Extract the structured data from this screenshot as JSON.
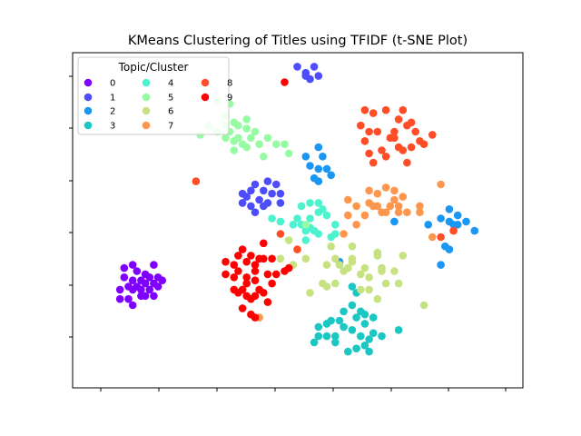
{
  "chart_data": {
    "type": "scatter",
    "title": "KMeans Clustering of Titles using TFIDF (t-SNE Plot)",
    "xlabel": "",
    "ylabel": "",
    "x_tick_labels": [],
    "y_tick_labels": [],
    "xlim": [
      0,
      100
    ],
    "ylim": [
      0,
      100
    ],
    "grid": false,
    "legend": {
      "title": "Topic/Cluster",
      "location": "upper left",
      "ncol": 3
    },
    "series": [
      {
        "name": "0",
        "color": "#8000ff",
        "points": [
          [
            9,
            34
          ],
          [
            11,
            35
          ],
          [
            12,
            33
          ],
          [
            14,
            32
          ],
          [
            16,
            35
          ],
          [
            9,
            31
          ],
          [
            11,
            30
          ],
          [
            13,
            30
          ],
          [
            15,
            31
          ],
          [
            17,
            31
          ],
          [
            10,
            28
          ],
          [
            12,
            28
          ],
          [
            14,
            29
          ],
          [
            16,
            29
          ],
          [
            18,
            30
          ],
          [
            8,
            27
          ],
          [
            11,
            27
          ],
          [
            13,
            27
          ],
          [
            15,
            27
          ],
          [
            17,
            28
          ],
          [
            8,
            24
          ],
          [
            10,
            24
          ],
          [
            13,
            25
          ],
          [
            16,
            25
          ],
          [
            14,
            25
          ],
          [
            11,
            22
          ]
        ]
      },
      {
        "name": "1",
        "color": "#4d4dfc",
        "points": [
          [
            50,
            99
          ],
          [
            54,
            99
          ],
          [
            52,
            97
          ],
          [
            53,
            95
          ],
          [
            55,
            96
          ],
          [
            52,
            96
          ],
          [
            40,
            61
          ],
          [
            43,
            62
          ],
          [
            45,
            61
          ],
          [
            37,
            58
          ],
          [
            39,
            59
          ],
          [
            42,
            59
          ],
          [
            44,
            58
          ],
          [
            46,
            58
          ],
          [
            38,
            57
          ],
          [
            41,
            56
          ],
          [
            43,
            55
          ],
          [
            37,
            55
          ],
          [
            39,
            54
          ],
          [
            42,
            54
          ],
          [
            46,
            55
          ],
          [
            40,
            52
          ]
        ]
      },
      {
        "name": "2",
        "color": "#1a96f3",
        "points": [
          [
            55,
            73
          ],
          [
            52,
            70
          ],
          [
            56,
            70
          ],
          [
            53,
            67
          ],
          [
            57,
            66
          ],
          [
            55,
            66
          ],
          [
            54,
            63
          ],
          [
            58,
            64
          ],
          [
            55,
            62
          ],
          [
            86,
            53
          ],
          [
            88,
            51
          ],
          [
            84,
            50
          ],
          [
            86,
            49
          ],
          [
            88,
            48
          ],
          [
            87,
            48
          ],
          [
            90,
            49
          ],
          [
            92,
            46
          ],
          [
            73,
            49
          ],
          [
            81,
            48
          ],
          [
            85,
            41
          ],
          [
            86,
            40
          ],
          [
            84,
            35
          ],
          [
            60,
            36
          ]
        ]
      },
      {
        "name": "3",
        "color": "#1ac7c2",
        "points": [
          [
            63,
            28
          ],
          [
            64,
            26
          ],
          [
            63,
            22
          ],
          [
            61,
            20
          ],
          [
            65,
            20
          ],
          [
            64,
            18
          ],
          [
            66,
            19
          ],
          [
            68,
            18
          ],
          [
            58,
            17
          ],
          [
            60,
            17
          ],
          [
            66,
            16
          ],
          [
            55,
            15
          ],
          [
            57,
            16
          ],
          [
            61,
            15
          ],
          [
            63,
            14
          ],
          [
            68,
            13
          ],
          [
            55,
            12
          ],
          [
            57,
            12
          ],
          [
            59,
            12
          ],
          [
            65,
            12
          ],
          [
            67,
            11
          ],
          [
            59,
            10
          ],
          [
            54,
            10
          ],
          [
            64,
            8
          ],
          [
            66,
            9
          ],
          [
            62,
            7
          ],
          [
            67,
            7
          ],
          [
            70,
            12
          ],
          [
            74,
            14
          ]
        ]
      },
      {
        "name": "4",
        "color": "#4df3ce",
        "points": [
          [
            53,
            55
          ],
          [
            55,
            55
          ],
          [
            51,
            54
          ],
          [
            56,
            53
          ],
          [
            55,
            52
          ],
          [
            57,
            51
          ],
          [
            53,
            50
          ],
          [
            49,
            48
          ],
          [
            51,
            48
          ],
          [
            59,
            48
          ],
          [
            53,
            47
          ],
          [
            54,
            46
          ],
          [
            55,
            45
          ],
          [
            52,
            43
          ],
          [
            50,
            50
          ],
          [
            59,
            45
          ],
          [
            52,
            46
          ],
          [
            58,
            44
          ],
          [
            44,
            50
          ],
          [
            46,
            49
          ]
        ]
      },
      {
        "name": "5",
        "color": "#96fca4",
        "points": [
          [
            31,
            88
          ],
          [
            34,
            87
          ],
          [
            33,
            83
          ],
          [
            38,
            82
          ],
          [
            35,
            81
          ],
          [
            29,
            80
          ],
          [
            33,
            80
          ],
          [
            36,
            80
          ],
          [
            38,
            79
          ],
          [
            40,
            78
          ],
          [
            34,
            78
          ],
          [
            31,
            78
          ],
          [
            36,
            76
          ],
          [
            39,
            76
          ],
          [
            33,
            76
          ],
          [
            35,
            75
          ],
          [
            37,
            74
          ],
          [
            35,
            72
          ],
          [
            41,
            74
          ],
          [
            43,
            76
          ],
          [
            45,
            74
          ],
          [
            47,
            74
          ],
          [
            48,
            71
          ],
          [
            42,
            70
          ],
          [
            27,
            77
          ],
          [
            38,
            73
          ],
          [
            52,
            48
          ]
        ]
      },
      {
        "name": "6",
        "color": "#c7e281",
        "points": [
          [
            58,
            41
          ],
          [
            63,
            41
          ],
          [
            59,
            37
          ],
          [
            63,
            37
          ],
          [
            57,
            35
          ],
          [
            60,
            35
          ],
          [
            63,
            36
          ],
          [
            61,
            33
          ],
          [
            62,
            34
          ],
          [
            66,
            34
          ],
          [
            70,
            34
          ],
          [
            73,
            33
          ],
          [
            67,
            31
          ],
          [
            70,
            33
          ],
          [
            71,
            29
          ],
          [
            74,
            29
          ],
          [
            65,
            32
          ],
          [
            59,
            29
          ],
          [
            56,
            29
          ],
          [
            67,
            27
          ],
          [
            69,
            24
          ],
          [
            75,
            38
          ],
          [
            69,
            38
          ],
          [
            48,
            43
          ],
          [
            49,
            35
          ],
          [
            46,
            37
          ],
          [
            53,
            26
          ],
          [
            52,
            37
          ],
          [
            57,
            28
          ],
          [
            80,
            22
          ],
          [
            65,
            27
          ],
          [
            69,
            39
          ]
        ]
      },
      {
        "name": "7",
        "color": "#ff964d",
        "points": [
          [
            67,
            59
          ],
          [
            69,
            58
          ],
          [
            71,
            60
          ],
          [
            67,
            55
          ],
          [
            72,
            54
          ],
          [
            74,
            54
          ],
          [
            75,
            57
          ],
          [
            74,
            52
          ],
          [
            70,
            52
          ],
          [
            68,
            54
          ],
          [
            69,
            54
          ],
          [
            71,
            52
          ],
          [
            64,
            54
          ],
          [
            62,
            56
          ],
          [
            66,
            51
          ],
          [
            76,
            52
          ],
          [
            79,
            52
          ],
          [
            82,
            44
          ],
          [
            61,
            45
          ],
          [
            64,
            48
          ],
          [
            62,
            51
          ],
          [
            73,
            56
          ],
          [
            79,
            54
          ],
          [
            84,
            61
          ],
          [
            41,
            18
          ],
          [
            73,
            59
          ]
        ]
      },
      {
        "name": "8",
        "color": "#ff4d27",
        "points": [
          [
            66,
            85
          ],
          [
            68,
            84
          ],
          [
            71,
            85
          ],
          [
            75,
            85
          ],
          [
            74,
            82
          ],
          [
            76,
            80
          ],
          [
            77,
            81
          ],
          [
            73,
            78
          ],
          [
            65,
            80
          ],
          [
            67,
            78
          ],
          [
            69,
            78
          ],
          [
            78,
            78
          ],
          [
            72,
            76
          ],
          [
            66,
            75
          ],
          [
            79,
            75
          ],
          [
            74,
            73
          ],
          [
            75,
            72
          ],
          [
            67,
            71
          ],
          [
            70,
            72
          ],
          [
            71,
            70
          ],
          [
            68,
            68
          ],
          [
            76,
            68
          ],
          [
            77,
            73
          ],
          [
            80,
            74
          ],
          [
            82,
            77
          ],
          [
            73,
            76
          ],
          [
            26,
            62
          ],
          [
            84,
            44
          ],
          [
            87,
            46
          ],
          [
            46,
            45
          ],
          [
            50,
            40
          ]
        ]
      },
      {
        "name": "9",
        "color": "#ff0000",
        "points": [
          [
            47,
            94
          ],
          [
            42,
            42
          ],
          [
            37,
            40
          ],
          [
            36,
            38
          ],
          [
            39,
            38
          ],
          [
            41,
            37
          ],
          [
            44,
            37
          ],
          [
            35,
            35
          ],
          [
            38,
            36
          ],
          [
            40,
            35
          ],
          [
            36,
            33
          ],
          [
            38,
            31
          ],
          [
            40,
            33
          ],
          [
            43,
            32
          ],
          [
            45,
            32
          ],
          [
            47,
            33
          ],
          [
            33,
            32
          ],
          [
            35,
            31
          ],
          [
            38,
            29
          ],
          [
            40,
            30
          ],
          [
            44,
            29
          ],
          [
            37,
            27
          ],
          [
            41,
            27
          ],
          [
            35,
            27
          ],
          [
            38,
            25
          ],
          [
            40,
            25
          ],
          [
            42,
            26
          ],
          [
            43,
            23
          ],
          [
            37,
            21
          ],
          [
            39,
            19
          ],
          [
            40,
            18
          ],
          [
            42,
            37
          ],
          [
            48,
            34
          ],
          [
            39,
            24
          ],
          [
            36,
            26
          ],
          [
            33,
            36
          ]
        ]
      }
    ]
  }
}
